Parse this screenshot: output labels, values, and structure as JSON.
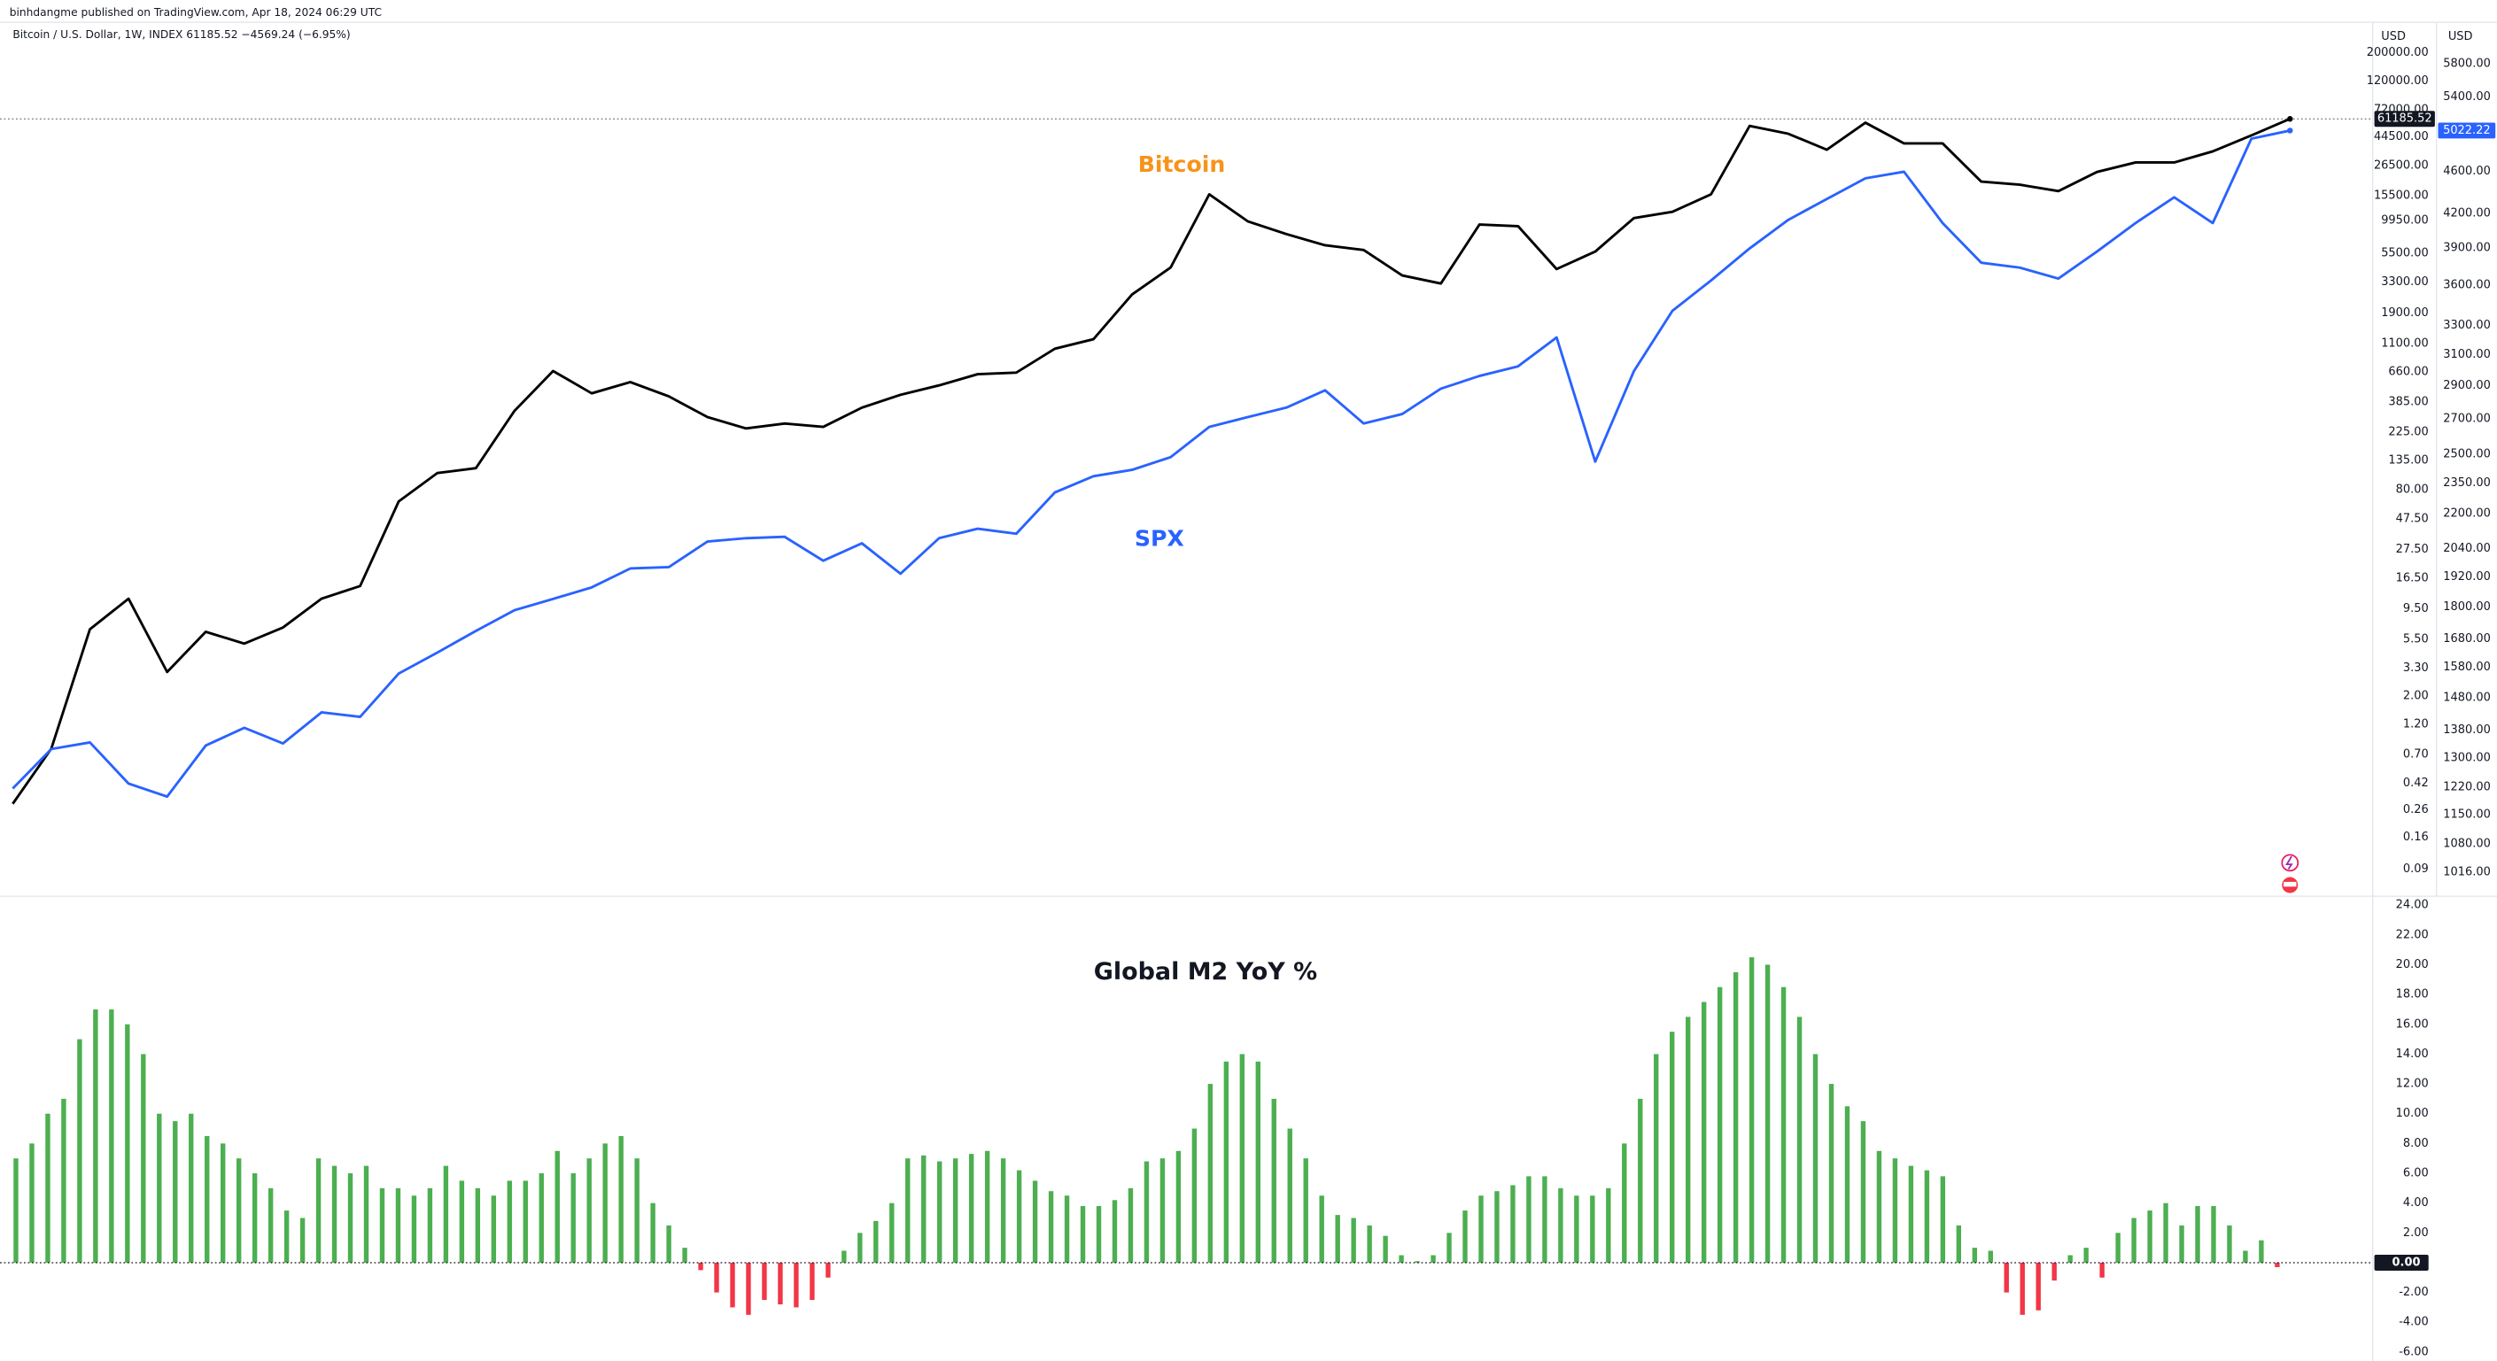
{
  "header": {
    "published": "binhdangme published on TradingView.com, Apr 18, 2024 06:29 UTC"
  },
  "chart_data": [
    {
      "type": "line",
      "subtitle": "Bitcoin / U.S. Dollar, 1W, INDEX  61185.52  −4569.24 (−6.95%)",
      "log_scale": true,
      "y_unit": "USD",
      "y2_unit": "USD",
      "series": [
        {
          "name": "Bitcoin",
          "color": "#000000",
          "label_color": "#f7931a",
          "axis": "y",
          "values": [
            0.29,
            0.78,
            6.6,
            11.4,
            3.07,
            6.3,
            5.1,
            6.8,
            11.4,
            14.3,
            65,
            108,
            118,
            329,
            671,
            450,
            550,
            426,
            294,
            240,
            262,
            247,
            348,
            438,
            519,
            634,
            652,
            1000,
            1186,
            2640,
            4280,
            15850,
            9770,
            7780,
            6370,
            5850,
            3710,
            3210,
            9230,
            8970,
            4160,
            5690,
            10350,
            11590,
            15850,
            53950,
            46900,
            35240,
            57150,
            39450,
            39450,
            19910,
            18840,
            16790,
            23660,
            28050,
            28050,
            34200,
            45500,
            61185.52
          ]
        },
        {
          "name": "SPX",
          "color": "#2962ff",
          "label_color": "#2962ff",
          "axis": "y2",
          "values": [
            1217,
            1325,
            1344,
            1230,
            1196,
            1335,
            1387,
            1341,
            1434,
            1420,
            1559,
            1631,
            1709,
            1787,
            1831,
            1877,
            1955,
            1961,
            2072,
            2087,
            2093,
            1988,
            2064,
            1933,
            2087,
            2130,
            2107,
            2303,
            2385,
            2418,
            2485,
            2652,
            2709,
            2765,
            2870,
            2672,
            2727,
            2880,
            2960,
            3022,
            3216,
            2461,
            2990,
            3406,
            3636,
            3896,
            4143,
            4334,
            4531,
            4596,
            4115,
            3778,
            3738,
            3651,
            3870,
            4115,
            4350,
            4115,
            4935,
            5022.22
          ]
        }
      ],
      "ylim": [
        0.0555,
        335000
      ],
      "yticks": [
        {
          "value": 200000,
          "label": "200000.00"
        },
        {
          "value": 120000,
          "label": "120000.00"
        },
        {
          "value": 72000,
          "label": "72000.00"
        },
        {
          "value": 44500,
          "label": "44500.00"
        },
        {
          "value": 26500,
          "label": "26500.00"
        },
        {
          "value": 15500,
          "label": "15500.00"
        },
        {
          "value": 9950,
          "label": "9950.00"
        },
        {
          "value": 5500,
          "label": "5500.00"
        },
        {
          "value": 3300,
          "label": "3300.00"
        },
        {
          "value": 1900,
          "label": "1900.00"
        },
        {
          "value": 1100,
          "label": "1100.00"
        },
        {
          "value": 660,
          "label": "660.00"
        },
        {
          "value": 385,
          "label": "385.00"
        },
        {
          "value": 225,
          "label": "225.00"
        },
        {
          "value": 135,
          "label": "135.00"
        },
        {
          "value": 80,
          "label": "80.00"
        },
        {
          "value": 47.5,
          "label": "47.50"
        },
        {
          "value": 27.5,
          "label": "27.50"
        },
        {
          "value": 16.5,
          "label": "16.50"
        },
        {
          "value": 9.5,
          "label": "9.50"
        },
        {
          "value": 5.5,
          "label": "5.50"
        },
        {
          "value": 3.3,
          "label": "3.30"
        },
        {
          "value": 2,
          "label": "2.00"
        },
        {
          "value": 1.2,
          "label": "1.20"
        },
        {
          "value": 0.7,
          "label": "0.70"
        },
        {
          "value": 0.42,
          "label": "0.42"
        },
        {
          "value": 0.26,
          "label": "0.26"
        },
        {
          "value": 0.16,
          "label": "0.16"
        },
        {
          "value": 0.09,
          "label": "0.09"
        }
      ],
      "y2lim": [
        965,
        6320
      ],
      "y2ticks": [
        {
          "value": 5800,
          "label": "5800.00"
        },
        {
          "value": 5400,
          "label": "5400.00"
        },
        {
          "value": 4600,
          "label": "4600.00"
        },
        {
          "value": 4200,
          "label": "4200.00"
        },
        {
          "value": 3900,
          "label": "3900.00"
        },
        {
          "value": 3600,
          "label": "3600.00"
        },
        {
          "value": 3300,
          "label": "3300.00"
        },
        {
          "value": 3100,
          "label": "3100.00"
        },
        {
          "value": 2900,
          "label": "2900.00"
        },
        {
          "value": 2700,
          "label": "2700.00"
        },
        {
          "value": 2500,
          "label": "2500.00"
        },
        {
          "value": 2350,
          "label": "2350.00"
        },
        {
          "value": 2200,
          "label": "2200.00"
        },
        {
          "value": 2040,
          "label": "2040.00"
        },
        {
          "value": 1920,
          "label": "1920.00"
        },
        {
          "value": 1800,
          "label": "1800.00"
        },
        {
          "value": 1680,
          "label": "1680.00"
        },
        {
          "value": 1580,
          "label": "1580.00"
        },
        {
          "value": 1480,
          "label": "1480.00"
        },
        {
          "value": 1380,
          "label": "1380.00"
        },
        {
          "value": 1300,
          "label": "1300.00"
        },
        {
          "value": 1220,
          "label": "1220.00"
        },
        {
          "value": 1150,
          "label": "1150.00"
        },
        {
          "value": 1080,
          "label": "1080.00"
        },
        {
          "value": 1016,
          "label": "1016.00"
        }
      ]
    },
    {
      "type": "bar",
      "title": "Global M2 YoY %",
      "positive_color": "#4caf50",
      "negative_color": "#f23645",
      "values": [
        7,
        8,
        10,
        11,
        15,
        17,
        17,
        16,
        14,
        10,
        9.5,
        10,
        8.5,
        8,
        7,
        6,
        5,
        3.5,
        3,
        7,
        6.5,
        6,
        6.5,
        5,
        5,
        4.5,
        5,
        6.5,
        5.5,
        5,
        4.5,
        5.5,
        5.5,
        6,
        7.5,
        6,
        7,
        8,
        8.5,
        7,
        4,
        2.5,
        1,
        -0.5,
        -2,
        -3,
        -3.5,
        -2.5,
        -2.8,
        -3,
        -2.5,
        -1,
        0.8,
        2,
        2.8,
        4,
        7,
        7.2,
        6.8,
        7,
        7.3,
        7.5,
        7,
        6.2,
        5.5,
        4.8,
        4.5,
        3.8,
        3.8,
        4.2,
        5,
        6.8,
        7,
        7.5,
        9,
        12,
        13.5,
        14,
        13.5,
        11,
        9,
        7,
        4.5,
        3.2,
        3,
        2.5,
        1.8,
        0.5,
        0.1,
        0.5,
        2,
        3.5,
        4.5,
        4.8,
        5.2,
        5.8,
        5.8,
        5,
        4.5,
        4.5,
        5,
        8,
        11,
        14,
        15.5,
        16.5,
        17.5,
        18.5,
        19.5,
        20.5,
        20,
        18.5,
        16.5,
        14,
        12,
        10.5,
        9.5,
        7.5,
        7,
        6.5,
        6.2,
        5.8,
        2.5,
        1,
        0.8,
        -2,
        -3.5,
        -3.2,
        -1.2,
        0.5,
        1,
        -1,
        2,
        3,
        3.5,
        4,
        2.5,
        3.8,
        3.8,
        2.5,
        0.8,
        1.5,
        -0.3
      ],
      "ylim": [
        -6.6,
        24.6
      ],
      "yticks": [
        {
          "value": 24,
          "label": "24.00"
        },
        {
          "value": 22,
          "label": "22.00"
        },
        {
          "value": 20,
          "label": "20.00"
        },
        {
          "value": 18,
          "label": "18.00"
        },
        {
          "value": 16,
          "label": "16.00"
        },
        {
          "value": 14,
          "label": "14.00"
        },
        {
          "value": 12,
          "label": "12.00"
        },
        {
          "value": 10,
          "label": "10.00"
        },
        {
          "value": 8,
          "label": "8.00"
        },
        {
          "value": 6,
          "label": "6.00"
        },
        {
          "value": 4,
          "label": "4.00"
        },
        {
          "value": 2,
          "label": "2.00"
        },
        {
          "value": 0,
          "label": "0.00"
        },
        {
          "value": -2,
          "label": "-2.00"
        },
        {
          "value": -4,
          "label": "-4.00"
        },
        {
          "value": -6,
          "label": "-6.00"
        }
      ]
    }
  ]
}
